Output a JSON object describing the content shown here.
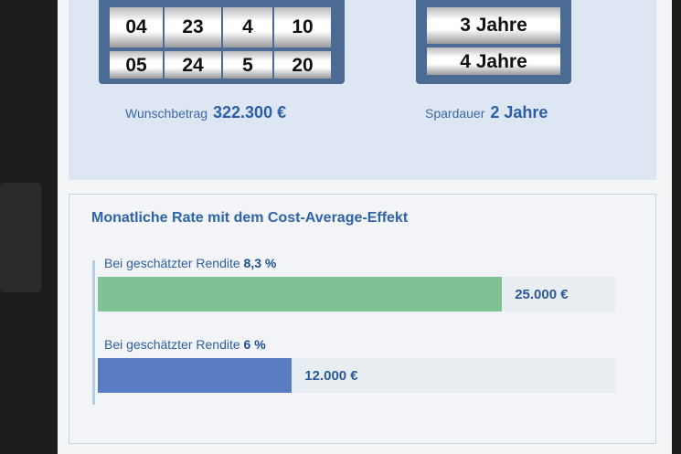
{
  "picker_left": {
    "rows": [
      [
        "04",
        "23",
        "4",
        "10"
      ],
      [
        "05",
        "24",
        "5",
        "20"
      ]
    ]
  },
  "picker_right": {
    "rows": [
      "3 Jahre",
      "4 Jahre"
    ]
  },
  "wunschbetrag": {
    "label": "Wunschbetrag",
    "value": "322.300 €"
  },
  "spardauer": {
    "label": "Spardauer",
    "value": "2 Jahre"
  },
  "panel": {
    "title": "Monatliche Rate mit dem Cost-Average-Effekt",
    "xlim": [
      0,
      32000
    ],
    "bars": [
      {
        "label": "Bei geschätzter Rendite",
        "rate": "8,3 %",
        "value": 25000,
        "value_label": "25.000 €",
        "color": "#7fc395"
      },
      {
        "label": "Bei geschätzter Rendite",
        "rate": "6 %",
        "value": 12000,
        "value_label": "12.000 €",
        "color": "#5a7cc2"
      }
    ]
  }
}
